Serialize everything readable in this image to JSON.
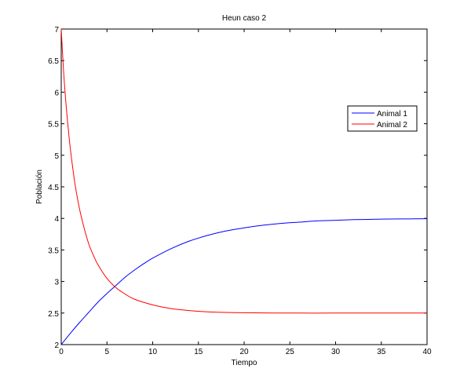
{
  "chart_data": {
    "type": "line",
    "title": "Heun caso 2",
    "xlabel": "Tiempo",
    "ylabel": "Población",
    "xlim": [
      0,
      40
    ],
    "ylim": [
      2,
      7
    ],
    "xticks": [
      0,
      5,
      10,
      15,
      20,
      25,
      30,
      35,
      40
    ],
    "yticks": [
      2,
      2.5,
      3,
      3.5,
      4,
      4.5,
      5,
      5.5,
      6,
      6.5,
      7
    ],
    "grid": false,
    "legend_position": "upper right",
    "series": [
      {
        "name": "Animal 1",
        "color": "#0000ff",
        "x": [
          0,
          1,
          2,
          3,
          4,
          5,
          6,
          7,
          8,
          9,
          10,
          12,
          14,
          16,
          18,
          20,
          22,
          24,
          26,
          28,
          30,
          32,
          34,
          36,
          38,
          40
        ],
        "y": [
          2.0,
          2.18,
          2.35,
          2.51,
          2.67,
          2.81,
          2.94,
          3.07,
          3.18,
          3.28,
          3.37,
          3.52,
          3.64,
          3.73,
          3.8,
          3.85,
          3.89,
          3.92,
          3.94,
          3.96,
          3.97,
          3.98,
          3.985,
          3.99,
          3.992,
          3.995
        ]
      },
      {
        "name": "Animal 2",
        "color": "#ff0000",
        "x": [
          0,
          0.25,
          0.5,
          0.75,
          1,
          1.5,
          2,
          2.5,
          3,
          3.5,
          4,
          5,
          6,
          7,
          8,
          10,
          12,
          14,
          16,
          18,
          20,
          25,
          30,
          35,
          40
        ],
        "y": [
          7.0,
          6.35,
          5.85,
          5.45,
          5.1,
          4.55,
          4.15,
          3.85,
          3.6,
          3.42,
          3.27,
          3.05,
          2.9,
          2.8,
          2.72,
          2.63,
          2.57,
          2.54,
          2.52,
          2.51,
          2.505,
          2.5,
          2.5,
          2.5,
          2.5
        ]
      }
    ]
  }
}
